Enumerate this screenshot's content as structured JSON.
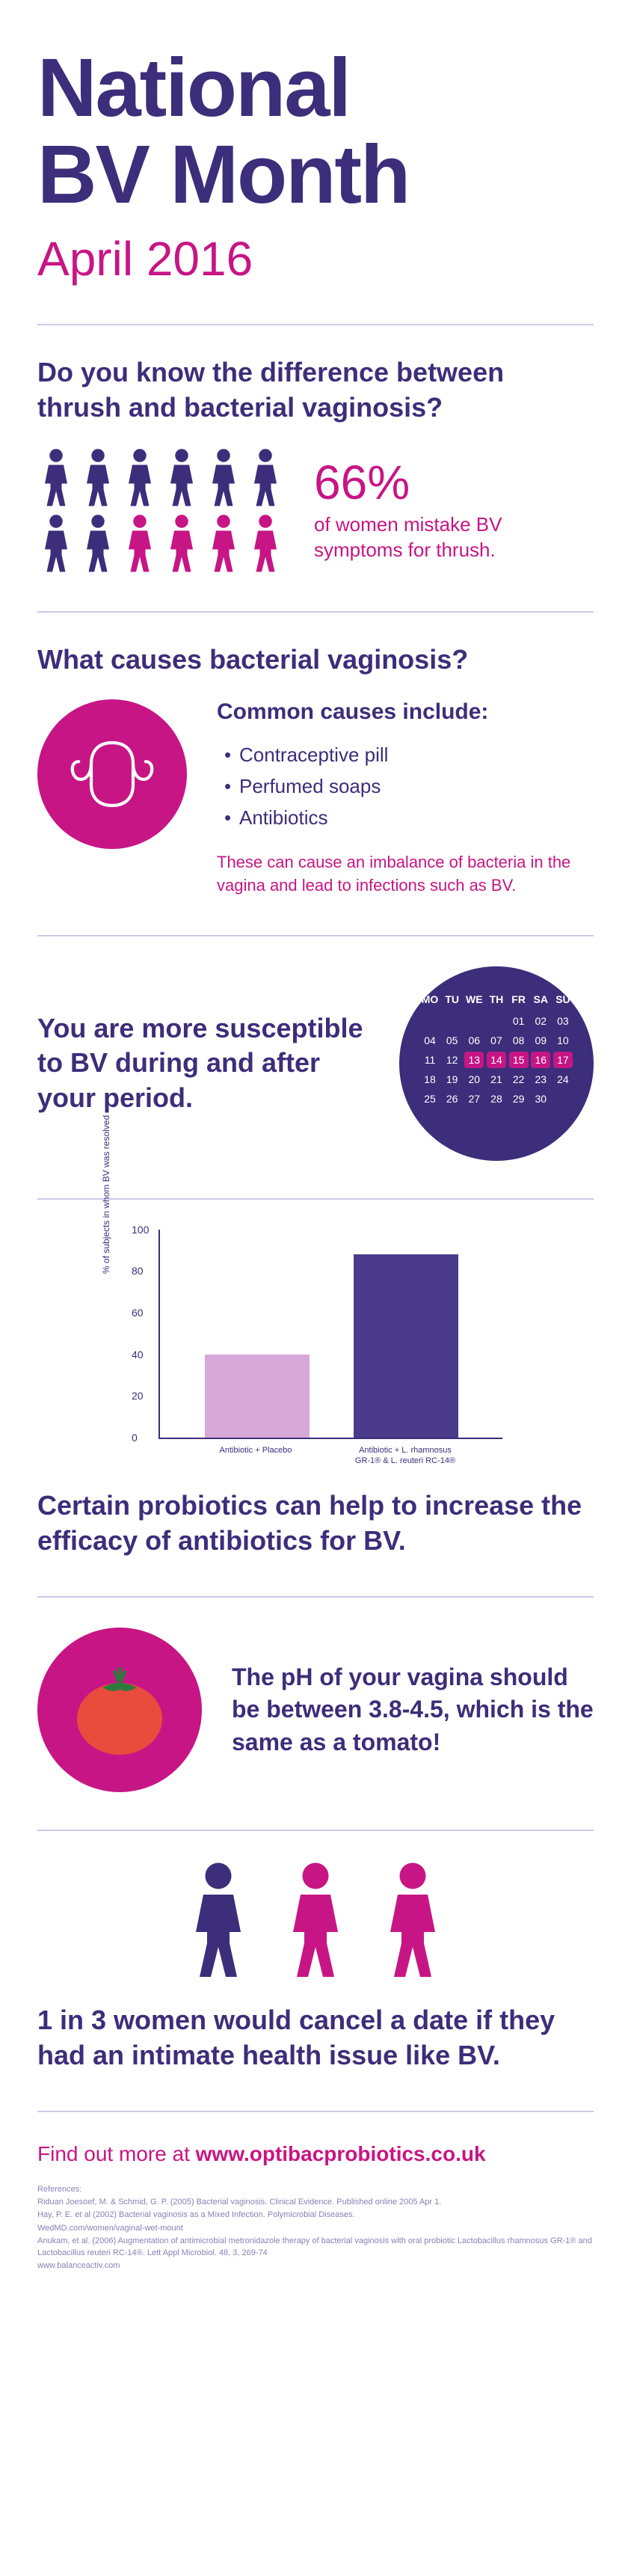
{
  "title": {
    "line1": "National",
    "line2": "BV Month",
    "date": "April 2016"
  },
  "stat": {
    "heading": "Do you know the difference between thrush and bacterial vaginosis?",
    "pct": "66%",
    "desc": "of women mistake BV symptoms for thrush.",
    "rows": 2,
    "cols": 6,
    "color_purple": "#3c2e7a",
    "color_pink": "#c71585",
    "highlight_from_index": 8
  },
  "causes": {
    "heading": "What causes bacterial vaginosis?",
    "subhead": "Common causes include:",
    "items": [
      "Contraceptive pill",
      "Perfumed soaps",
      "Antibiotics"
    ],
    "note": "These can cause an imbalance of bacteria in the vagina and lead to infections such as BV."
  },
  "period": {
    "text": "You are more susceptible to BV during and after your period.",
    "cal_days": [
      "MO",
      "TU",
      "WE",
      "TH",
      "FR",
      "SA",
      "SU"
    ],
    "cal_rows": [
      [
        "",
        "",
        "",
        "",
        "01",
        "02",
        "03"
      ],
      [
        "04",
        "05",
        "06",
        "07",
        "08",
        "09",
        "10"
      ],
      [
        "11",
        "12",
        "13",
        "14",
        "15",
        "16",
        "17"
      ],
      [
        "18",
        "19",
        "20",
        "21",
        "22",
        "23",
        "24"
      ],
      [
        "25",
        "26",
        "27",
        "28",
        "29",
        "30",
        ""
      ]
    ],
    "highlight": [
      "13",
      "14",
      "15",
      "16",
      "17"
    ]
  },
  "chart": {
    "ylabel": "% of subjects in whom BV was resolved",
    "ymax": 100,
    "yticks": [
      0,
      20,
      40,
      60,
      80,
      100
    ],
    "bars": [
      {
        "label": "Antibiotic + Placebo",
        "value": 40,
        "color": "#d8a8d8"
      },
      {
        "label": "Antibiotic + L. rhamnosus GR-1® & L. reuteri RC-14®",
        "value": 88,
        "color": "#4a3b8a"
      }
    ],
    "note": "Certain probiotics can help to increase the efficacy of antibiotics for BV."
  },
  "ph": {
    "text": "The pH of your vagina should be between 3.8-4.5, which is the same as a tomato!"
  },
  "date_cancel": {
    "colors": [
      "#3c2e7a",
      "#c71585",
      "#c71585"
    ],
    "text": "1 in 3 women would cancel a date if they had an intimate health issue like BV."
  },
  "cta": {
    "prefix": "Find out more at ",
    "url": "www.optibacprobiotics.co.uk"
  },
  "refs": {
    "heading": "References:",
    "lines": [
      "Riduan Joesoef, M. & Schmid, G. P. (2005) Bacterial vaginosis. Clinical Evidence. Published online 2005 Apr 1.",
      "Hay, P. E. et al (2002) Bacterial vaginosis as a Mixed Infection. Polymicrobial Diseases.",
      "WedMD.com/women/vaginal-wet-mount",
      "Anukam, et al. (2006) Augmentation of antimicrobial metronidazole therapy of bacterial vaginosis with oral probiotic Lactobacillus rhamnosus GR-1® and Lactobacillus reuteri RC-14®. Lett Appl Microbiol. 48, 3, 269-74",
      "www.balanceactiv.com"
    ]
  }
}
